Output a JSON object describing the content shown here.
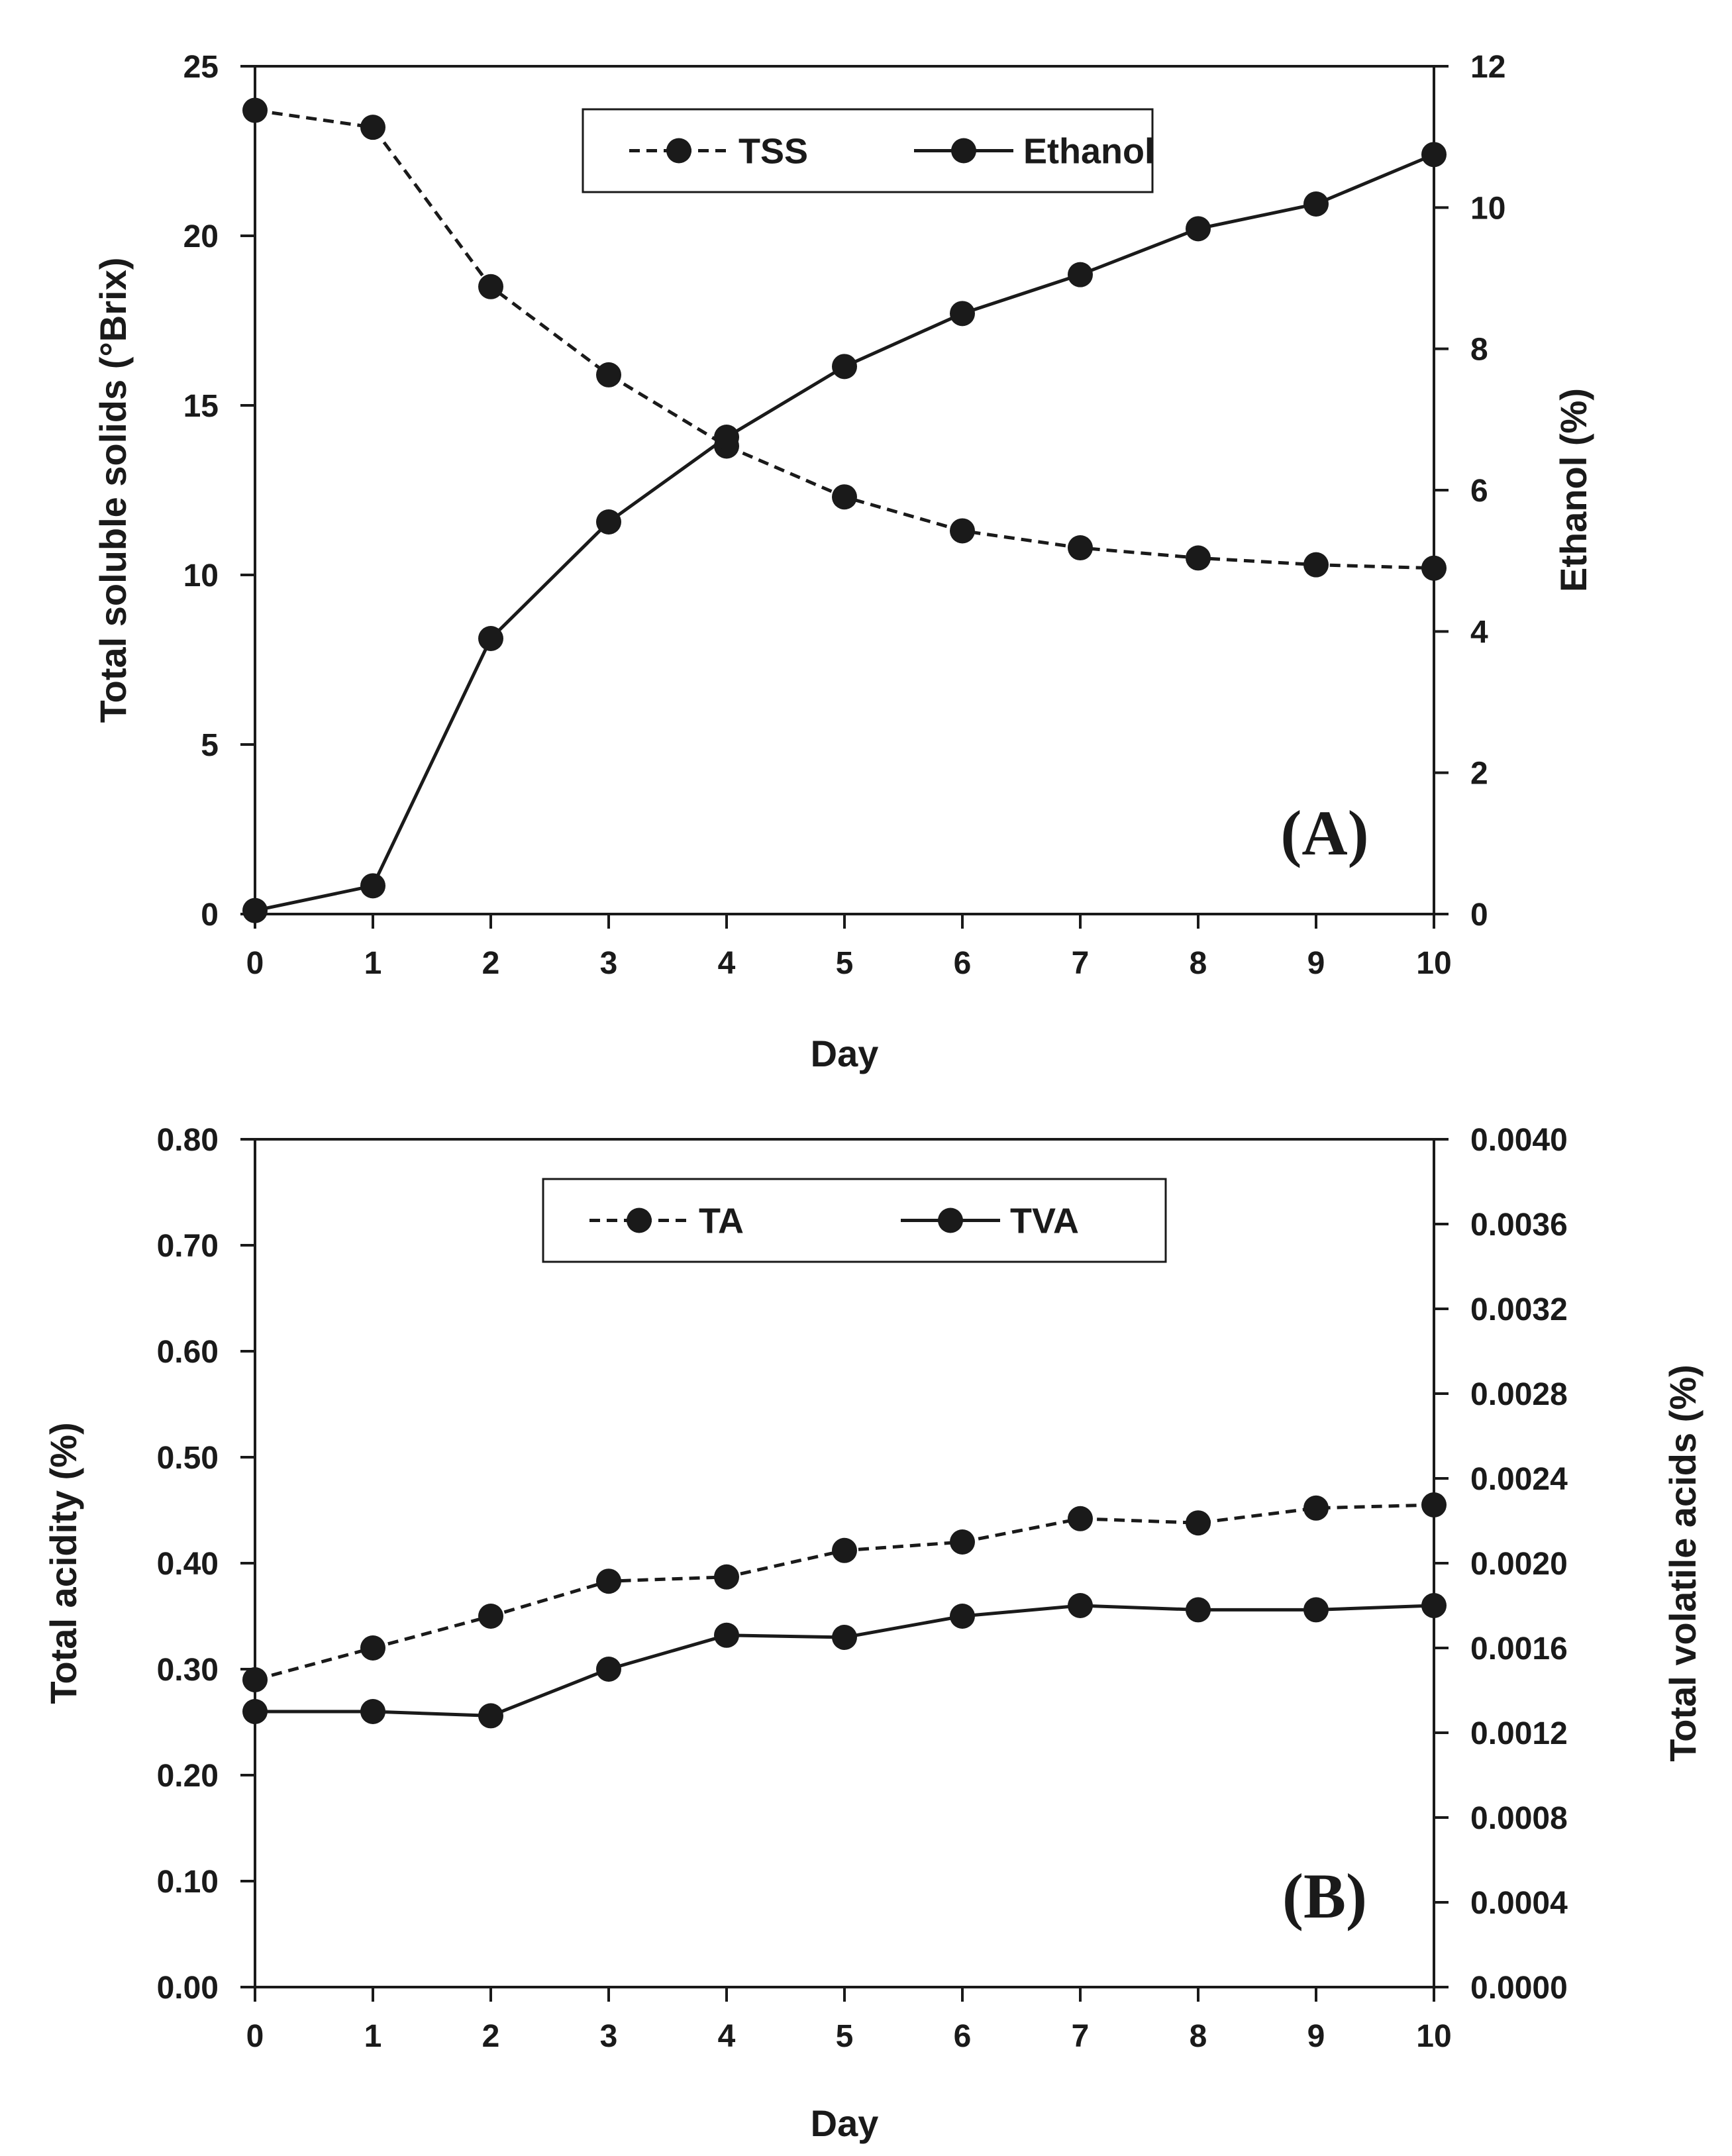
{
  "chart_data": [
    {
      "type": "line",
      "panel_label": "(A)",
      "x": [
        0,
        1,
        2,
        3,
        4,
        5,
        6,
        7,
        8,
        9,
        10
      ],
      "xticks": [
        "0",
        "1",
        "2",
        "3",
        "4",
        "5",
        "6",
        "7",
        "8",
        "9",
        "10"
      ],
      "xlabel": "Day",
      "ylabel_left": "Total soluble solids (°Brix)",
      "ylabel_right": "Ethanol (%)",
      "ylim_left": [
        0,
        25
      ],
      "ylim_right": [
        0,
        12
      ],
      "yticks_left": [
        "0",
        "5",
        "10",
        "15",
        "20",
        "25"
      ],
      "yticks_right": [
        "0",
        "2",
        "4",
        "6",
        "8",
        "10",
        "12"
      ],
      "series": [
        {
          "name": "TSS",
          "axis": "left",
          "style": "dashed",
          "values": [
            23.7,
            23.2,
            18.5,
            15.9,
            13.8,
            12.3,
            11.3,
            10.8,
            10.5,
            10.3,
            10.2
          ]
        },
        {
          "name": "Ethanol",
          "axis": "right",
          "style": "solid",
          "values": [
            0.05,
            0.4,
            3.9,
            5.55,
            6.75,
            7.75,
            8.5,
            9.05,
            9.7,
            10.05,
            10.75
          ]
        }
      ],
      "legend": {
        "placement": "top-center",
        "entries": [
          "TSS",
          "Ethanol"
        ]
      }
    },
    {
      "type": "line",
      "panel_label": "(B)",
      "x": [
        0,
        1,
        2,
        3,
        4,
        5,
        6,
        7,
        8,
        9,
        10
      ],
      "xticks": [
        "0",
        "1",
        "2",
        "3",
        "4",
        "5",
        "6",
        "7",
        "8",
        "9",
        "10"
      ],
      "xlabel": "Day",
      "ylabel_left": "Total acidity (%)",
      "ylabel_right": "Total volatile acids (%)",
      "ylim_left": [
        0,
        0.8
      ],
      "ylim_right": [
        0,
        0.004
      ],
      "yticks_left": [
        "0.00",
        "0.10",
        "0.20",
        "0.30",
        "0.40",
        "0.50",
        "0.60",
        "0.70",
        "0.80"
      ],
      "yticks_right": [
        "0.0000",
        "0.0004",
        "0.0008",
        "0.0012",
        "0.0016",
        "0.0020",
        "0.0024",
        "0.0028",
        "0.0032",
        "0.0036",
        "0.0040"
      ],
      "series": [
        {
          "name": "TA",
          "axis": "left",
          "style": "dashed",
          "values": [
            0.29,
            0.32,
            0.35,
            0.383,
            0.387,
            0.412,
            0.42,
            0.442,
            0.438,
            0.452,
            0.455
          ]
        },
        {
          "name": "TVA",
          "axis": "right",
          "style": "solid",
          "values": [
            0.0013,
            0.0013,
            0.00128,
            0.0015,
            0.00166,
            0.00165,
            0.00175,
            0.0018,
            0.00178,
            0.00178,
            0.0018
          ]
        }
      ],
      "legend": {
        "placement": "top-center",
        "entries": [
          "TA",
          "TVA"
        ]
      }
    }
  ]
}
